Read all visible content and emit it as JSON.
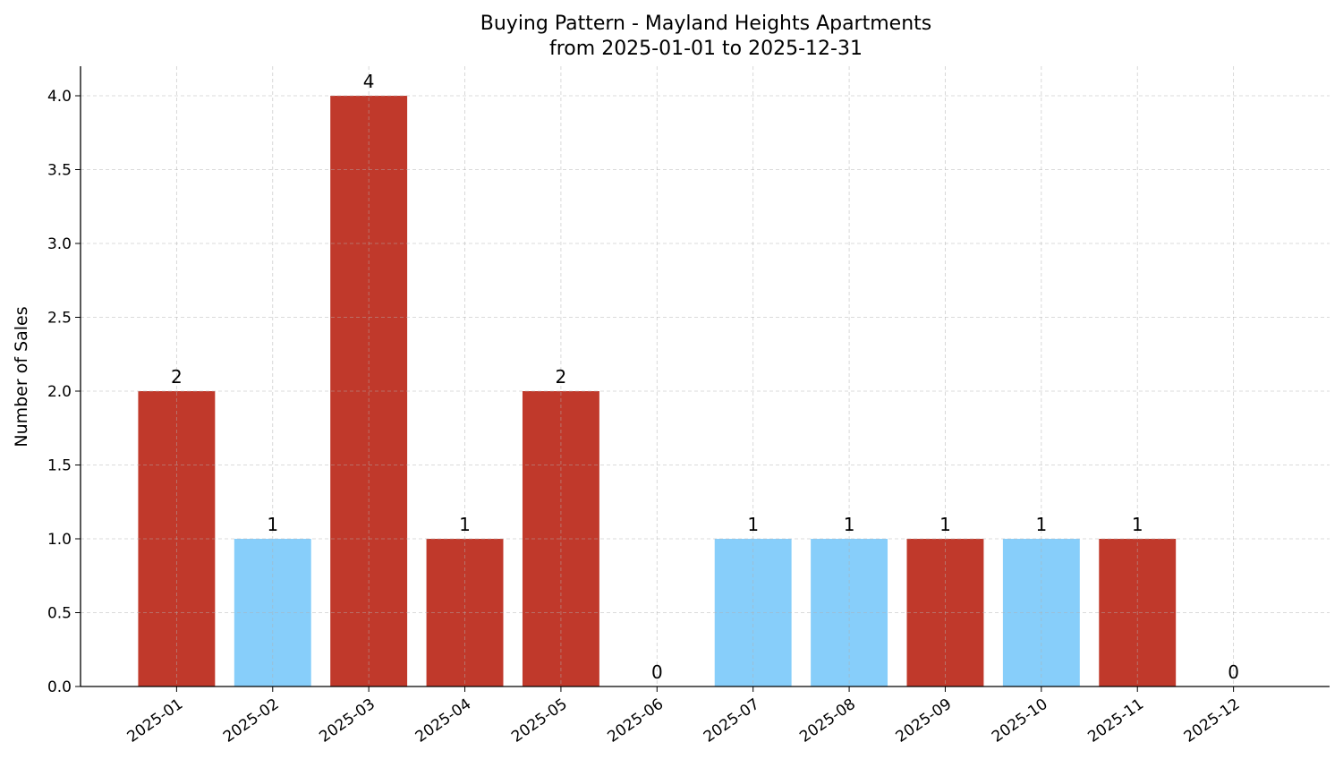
{
  "chart_data": {
    "type": "bar",
    "title": "Buying Pattern - Mayland Heights Apartments",
    "subtitle": "from 2025-01-01 to 2025-12-31",
    "xlabel": "",
    "ylabel": "Number of Sales",
    "categories": [
      "2025-01",
      "2025-02",
      "2025-03",
      "2025-04",
      "2025-05",
      "2025-06",
      "2025-07",
      "2025-08",
      "2025-09",
      "2025-10",
      "2025-11",
      "2025-12"
    ],
    "values": [
      2,
      1,
      4,
      1,
      2,
      0,
      1,
      1,
      1,
      1,
      1,
      0
    ],
    "bar_colors": [
      "#c0392b",
      "#87cefa",
      "#c0392b",
      "#c0392b",
      "#c0392b",
      "#87cefa",
      "#87cefa",
      "#87cefa",
      "#c0392b",
      "#87cefa",
      "#c0392b",
      "#87cefa"
    ],
    "data_labels": [
      "2",
      "1",
      "4",
      "1",
      "2",
      "0",
      "1",
      "1",
      "1",
      "1",
      "1",
      "0"
    ],
    "ylim": [
      0,
      4.2
    ],
    "yticks": [
      "0.0",
      "0.5",
      "1.0",
      "1.5",
      "2.0",
      "2.5",
      "3.0",
      "3.5",
      "4.0"
    ],
    "grid": true,
    "legend": "none"
  }
}
